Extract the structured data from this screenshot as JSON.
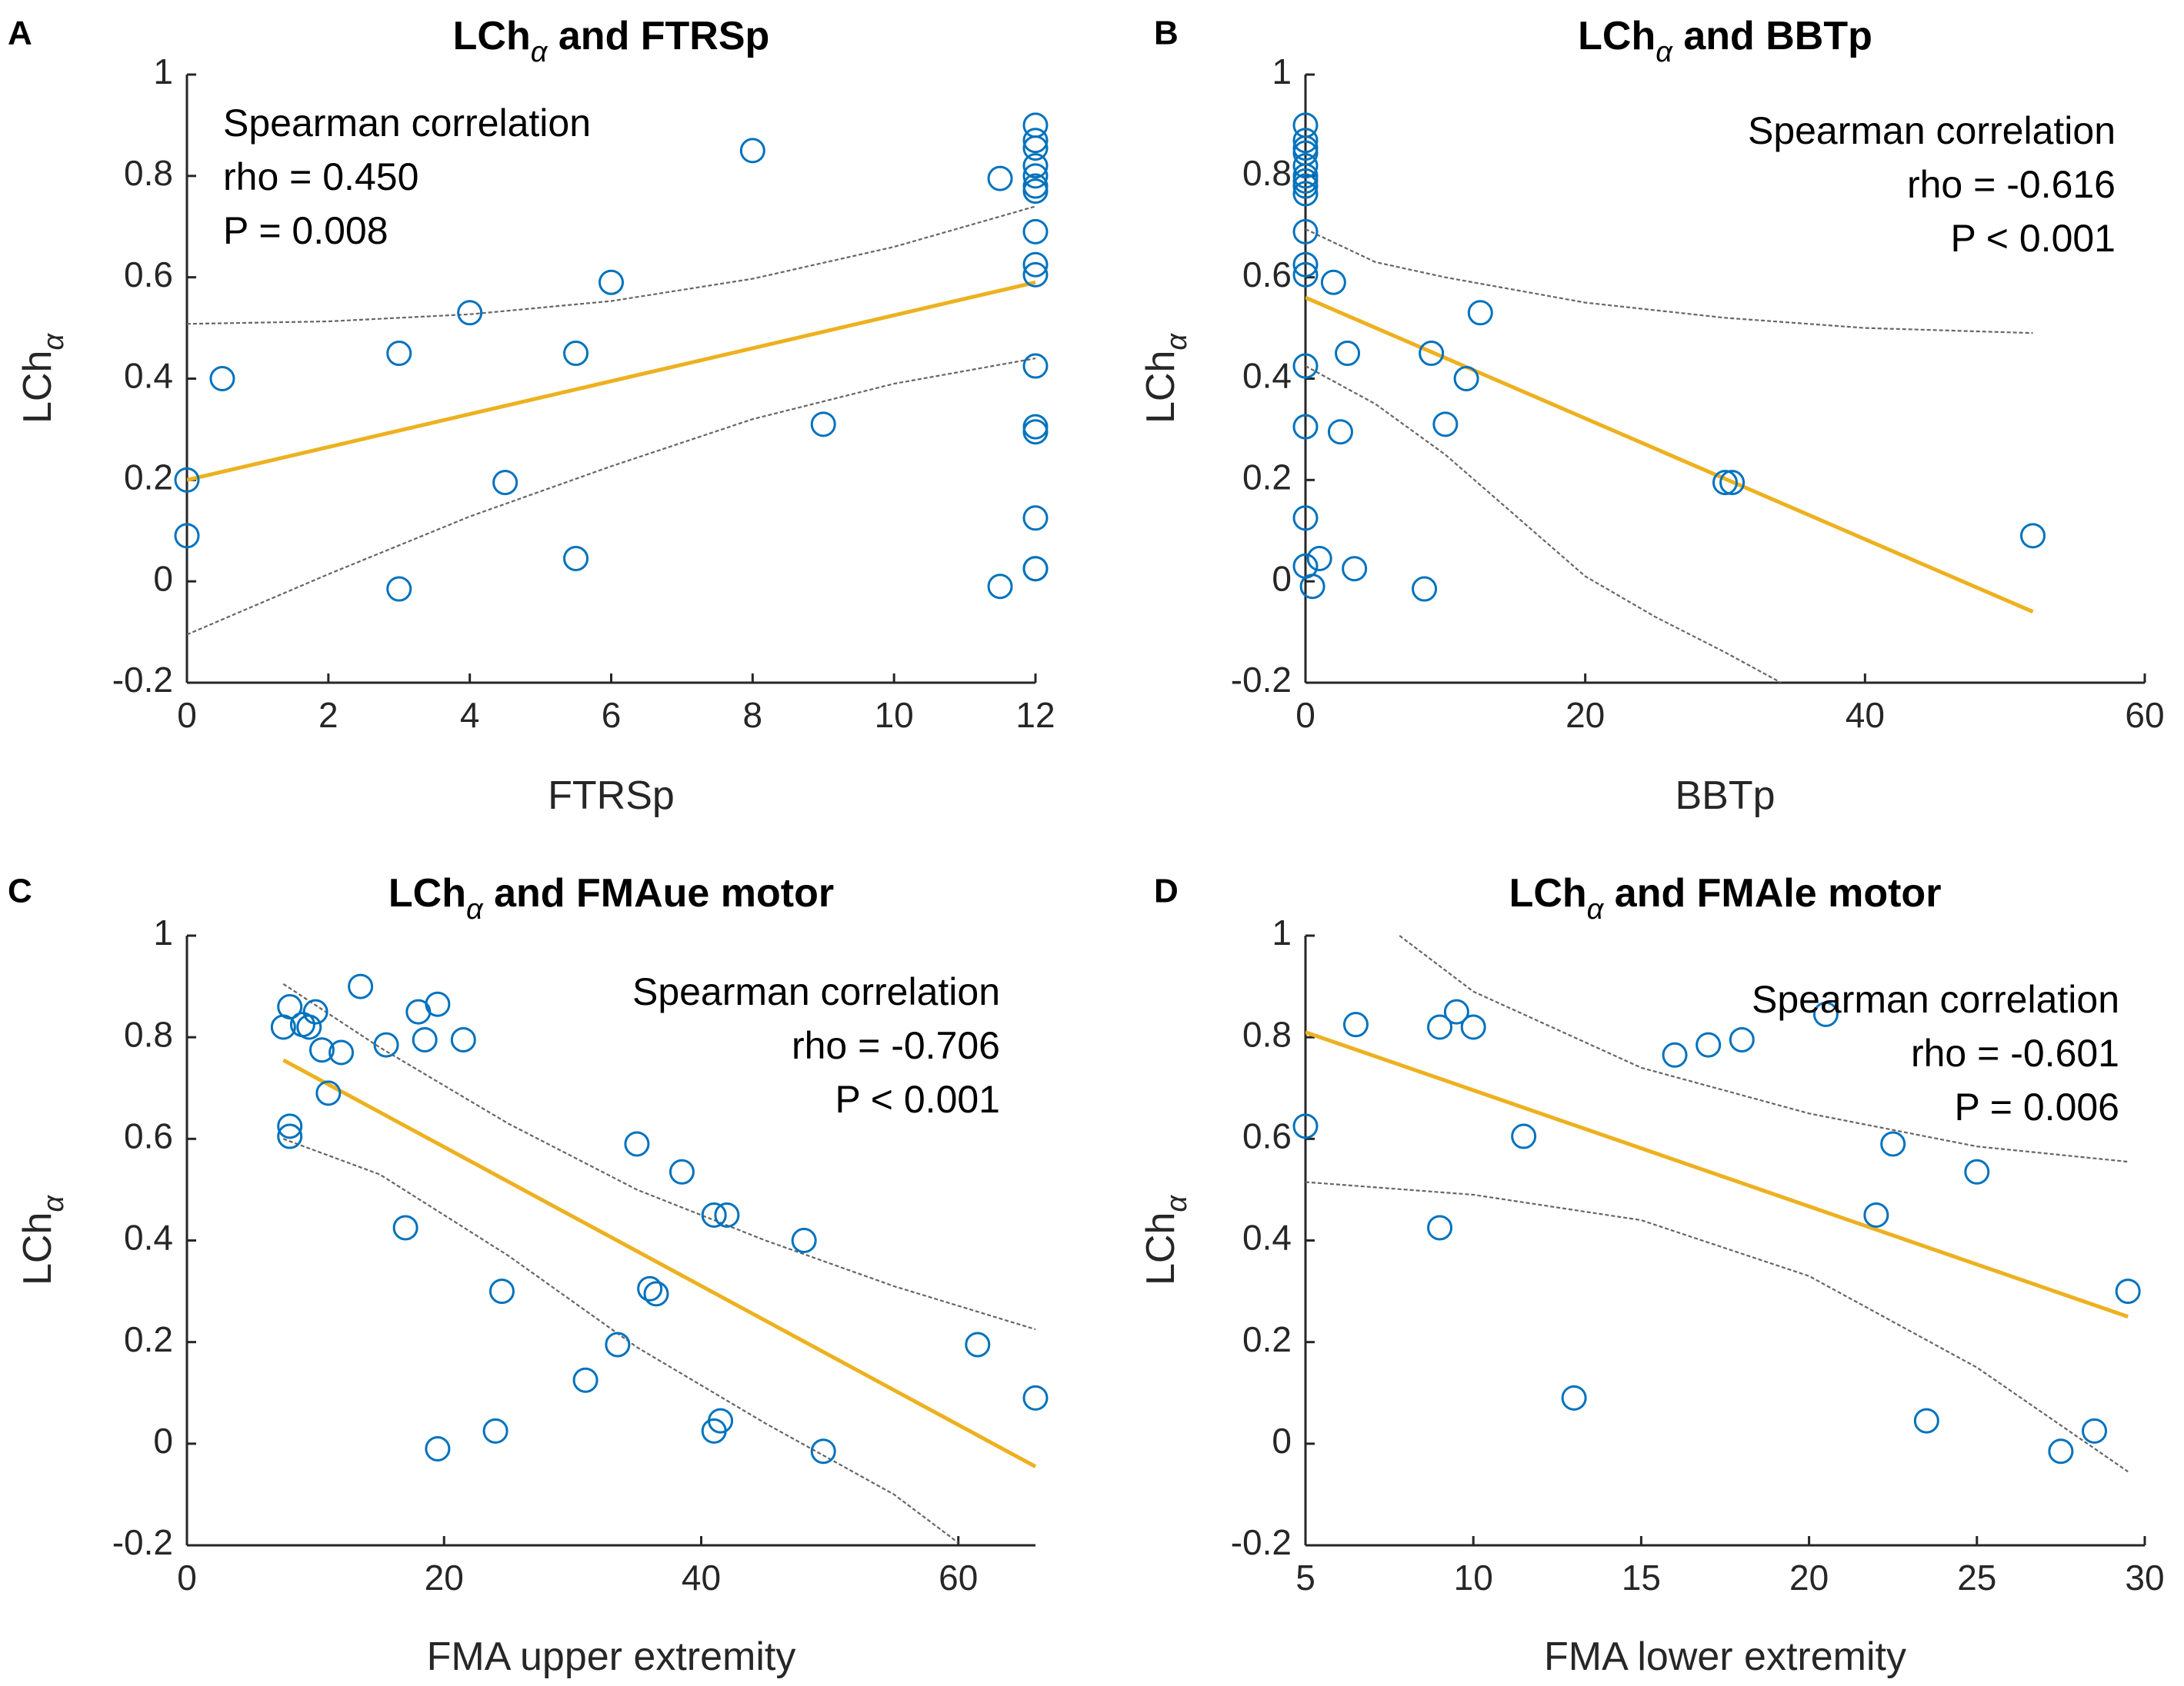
{
  "colors": {
    "points": "#0072bd",
    "fit": "#edb120",
    "ci": "#666666",
    "axis": "#262626"
  },
  "chart_data": [
    {
      "type": "scatter",
      "panel": "A",
      "title": "LChα and FTRSp",
      "title_main": "LCh",
      "title_sub": "α",
      "title_rest": " and FTRSp",
      "xlabel": "FTRSp",
      "ylabel_main": "LCh",
      "ylabel_sub": "α",
      "xlim": [
        0,
        12
      ],
      "ylim": [
        -0.2,
        1
      ],
      "xticks": [
        0,
        2,
        4,
        6,
        8,
        10,
        12
      ],
      "yticks": [
        -0.2,
        0,
        0.2,
        0.4,
        0.6,
        0.8,
        1
      ],
      "ytick_labels": [
        "-0.2",
        "0",
        "0.2",
        "0.4",
        "0.6",
        "0.8",
        "1"
      ],
      "annotation_align": "left",
      "annotation": [
        "Spearman correlation",
        " rho = 0.450",
        " P = 0.008"
      ],
      "points": [
        [
          0,
          0.2
        ],
        [
          0,
          0.09
        ],
        [
          0.5,
          0.4
        ],
        [
          3,
          0.45
        ],
        [
          3,
          -0.015
        ],
        [
          4,
          0.53
        ],
        [
          4.5,
          0.195
        ],
        [
          5.5,
          0.45
        ],
        [
          5.5,
          0.045
        ],
        [
          6,
          0.59
        ],
        [
          8,
          0.85
        ],
        [
          9,
          0.31
        ],
        [
          11.5,
          0.795
        ],
        [
          11.5,
          -0.01
        ],
        [
          12,
          0.9
        ],
        [
          12,
          0.87
        ],
        [
          12,
          0.855
        ],
        [
          12,
          0.82
        ],
        [
          12,
          0.8
        ],
        [
          12,
          0.78
        ],
        [
          12,
          0.77
        ],
        [
          12,
          0.69
        ],
        [
          12,
          0.625
        ],
        [
          12,
          0.605
        ],
        [
          12,
          0.425
        ],
        [
          12,
          0.305
        ],
        [
          12,
          0.295
        ],
        [
          12,
          0.125
        ],
        [
          12,
          0.025
        ],
        [
          12,
          0.025
        ]
      ],
      "fit": [
        [
          0,
          0.2
        ],
        [
          12,
          0.59
        ]
      ],
      "ci_upper": [
        [
          0,
          0.508
        ],
        [
          2,
          0.513
        ],
        [
          4,
          0.527
        ],
        [
          6,
          0.553
        ],
        [
          8,
          0.597
        ],
        [
          10,
          0.66
        ],
        [
          12,
          0.74
        ]
      ],
      "ci_lower": [
        [
          0,
          -0.105
        ],
        [
          2,
          0.014
        ],
        [
          4,
          0.128
        ],
        [
          6,
          0.227
        ],
        [
          8,
          0.32
        ],
        [
          10,
          0.39
        ],
        [
          12,
          0.44
        ]
      ]
    },
    {
      "type": "scatter",
      "panel": "B",
      "title": "LChα and BBTp",
      "title_main": "LCh",
      "title_sub": "α",
      "title_rest": " and BBTp",
      "xlabel": "BBTp",
      "ylabel_main": "LCh",
      "ylabel_sub": "α",
      "xlim": [
        0,
        60
      ],
      "ylim": [
        -0.2,
        1
      ],
      "xticks": [
        0,
        20,
        40,
        60
      ],
      "yticks": [
        -0.2,
        0,
        0.2,
        0.4,
        0.6,
        0.8,
        1
      ],
      "ytick_labels": [
        "-0.2",
        "0",
        "0.2",
        "0.4",
        "0.6",
        "0.8",
        "1"
      ],
      "annotation_align": "right",
      "annotation": [
        "Spearman correlation",
        "rho = -0.616",
        "P < 0.001"
      ],
      "points": [
        [
          0,
          0.9
        ],
        [
          0,
          0.87
        ],
        [
          0,
          0.855
        ],
        [
          0,
          0.845
        ],
        [
          0,
          0.82
        ],
        [
          0,
          0.8
        ],
        [
          0,
          0.79
        ],
        [
          0,
          0.78
        ],
        [
          0,
          0.765
        ],
        [
          0,
          0.69
        ],
        [
          0,
          0.625
        ],
        [
          0,
          0.605
        ],
        [
          0,
          0.425
        ],
        [
          0,
          0.305
        ],
        [
          0,
          0.125
        ],
        [
          0,
          0.03
        ],
        [
          0.5,
          -0.01
        ],
        [
          1,
          0.045
        ],
        [
          2,
          0.59
        ],
        [
          3,
          0.45
        ],
        [
          2.5,
          0.295
        ],
        [
          3.5,
          0.025
        ],
        [
          8.5,
          -0.015
        ],
        [
          9,
          0.45
        ],
        [
          10,
          0.31
        ],
        [
          11.5,
          0.4
        ],
        [
          12.5,
          0.53
        ],
        [
          30,
          0.195
        ],
        [
          30.5,
          0.195
        ],
        [
          52,
          0.09
        ]
      ],
      "fit": [
        [
          0,
          0.56
        ],
        [
          52,
          -0.06
        ]
      ],
      "ci_upper": [
        [
          0,
          0.695
        ],
        [
          5,
          0.63
        ],
        [
          10,
          0.6
        ],
        [
          20,
          0.55
        ],
        [
          30,
          0.52
        ],
        [
          40,
          0.5
        ],
        [
          52,
          0.49
        ]
      ],
      "ci_lower": [
        [
          0,
          0.425
        ],
        [
          5,
          0.35
        ],
        [
          10,
          0.25
        ],
        [
          15,
          0.13
        ],
        [
          20,
          0.01
        ],
        [
          25,
          -0.07
        ],
        [
          30,
          -0.14
        ],
        [
          34,
          -0.2
        ]
      ]
    },
    {
      "type": "scatter",
      "panel": "C",
      "title": "LChα and FMAue motor",
      "title_main": "LCh",
      "title_sub": "α",
      "title_rest": " and FMAue motor",
      "xlabel": "FMA upper extremity",
      "ylabel_main": "LCh",
      "ylabel_sub": "α",
      "xlim": [
        0,
        66
      ],
      "ylim": [
        -0.2,
        1
      ],
      "xticks": [
        0,
        20,
        40,
        60
      ],
      "yticks": [
        -0.2,
        0,
        0.2,
        0.4,
        0.6,
        0.8,
        1
      ],
      "ytick_labels": [
        "-0.2",
        "0",
        "0.2",
        "0.4",
        "0.6",
        "0.8",
        "1"
      ],
      "annotation_align": "right",
      "annotation": [
        "Spearman correlation",
        "rho = -0.706",
        "P < 0.001"
      ],
      "points": [
        [
          7.5,
          0.82
        ],
        [
          8,
          0.86
        ],
        [
          8,
          0.625
        ],
        [
          8,
          0.605
        ],
        [
          9,
          0.825
        ],
        [
          9.5,
          0.82
        ],
        [
          10,
          0.85
        ],
        [
          10.5,
          0.775
        ],
        [
          11,
          0.69
        ],
        [
          12,
          0.77
        ],
        [
          13.5,
          0.9
        ],
        [
          15.5,
          0.785
        ],
        [
          17,
          0.425
        ],
        [
          18,
          0.85
        ],
        [
          18.5,
          0.795
        ],
        [
          19.5,
          0.865
        ],
        [
          19.5,
          -0.01
        ],
        [
          21.5,
          0.795
        ],
        [
          24,
          0.025
        ],
        [
          24.5,
          0.3
        ],
        [
          31,
          0.125
        ],
        [
          33.5,
          0.195
        ],
        [
          35,
          0.59
        ],
        [
          36,
          0.305
        ],
        [
          36.5,
          0.295
        ],
        [
          38.5,
          0.535
        ],
        [
          41,
          0.45
        ],
        [
          41,
          0.025
        ],
        [
          41.5,
          0.045
        ],
        [
          42,
          0.45
        ],
        [
          48,
          0.4
        ],
        [
          49.5,
          -0.015
        ],
        [
          61.5,
          0.195
        ],
        [
          66,
          0.09
        ]
      ],
      "fit": [
        [
          7.5,
          0.755
        ],
        [
          66,
          -0.045
        ]
      ],
      "ci_upper": [
        [
          7.5,
          0.905
        ],
        [
          15,
          0.78
        ],
        [
          25,
          0.63
        ],
        [
          35,
          0.5
        ],
        [
          45,
          0.4
        ],
        [
          55,
          0.31
        ],
        [
          66,
          0.225
        ]
      ],
      "ci_lower": [
        [
          7.5,
          0.6
        ],
        [
          15,
          0.53
        ],
        [
          25,
          0.37
        ],
        [
          35,
          0.19
        ],
        [
          45,
          0.04
        ],
        [
          55,
          -0.1
        ],
        [
          60,
          -0.195
        ]
      ]
    },
    {
      "type": "scatter",
      "panel": "D",
      "title": "LChα and FMAle motor",
      "title_main": "LCh",
      "title_sub": "α",
      "title_rest": " and FMAle motor",
      "xlabel": "FMA lower extremity",
      "ylabel_main": "LCh",
      "ylabel_sub": "α",
      "xlim": [
        5,
        30
      ],
      "ylim": [
        -0.2,
        1
      ],
      "xticks": [
        5,
        10,
        15,
        20,
        25,
        30
      ],
      "yticks": [
        -0.2,
        0,
        0.2,
        0.4,
        0.6,
        0.8,
        1
      ],
      "ytick_labels": [
        "-0.2",
        "0",
        "0.2",
        "0.4",
        "0.6",
        "0.8",
        "1"
      ],
      "annotation_align": "right",
      "annotation": [
        "Spearman correlation",
        "rho = -0.601",
        "P = 0.006"
      ],
      "points": [
        [
          5,
          0.625
        ],
        [
          6.5,
          0.825
        ],
        [
          9,
          0.82
        ],
        [
          9,
          0.425
        ],
        [
          9.5,
          0.85
        ],
        [
          10,
          0.82
        ],
        [
          11.5,
          0.605
        ],
        [
          13,
          0.09
        ],
        [
          16,
          0.765
        ],
        [
          17,
          0.785
        ],
        [
          18,
          0.795
        ],
        [
          20.5,
          0.845
        ],
        [
          22,
          0.45
        ],
        [
          22.5,
          0.59
        ],
        [
          23.5,
          0.045
        ],
        [
          25,
          0.535
        ],
        [
          27.5,
          -0.015
        ],
        [
          28.5,
          0.025
        ],
        [
          29.5,
          0.3
        ]
      ],
      "fit": [
        [
          5,
          0.81
        ],
        [
          29.5,
          0.25
        ]
      ],
      "ci_upper": [
        [
          7.8,
          1.0
        ],
        [
          10,
          0.89
        ],
        [
          15,
          0.74
        ],
        [
          20,
          0.65
        ],
        [
          25,
          0.585
        ],
        [
          29.5,
          0.555
        ]
      ],
      "ci_lower": [
        [
          5,
          0.515
        ],
        [
          10,
          0.49
        ],
        [
          15,
          0.44
        ],
        [
          20,
          0.33
        ],
        [
          25,
          0.15
        ],
        [
          29.5,
          -0.055
        ]
      ]
    }
  ]
}
